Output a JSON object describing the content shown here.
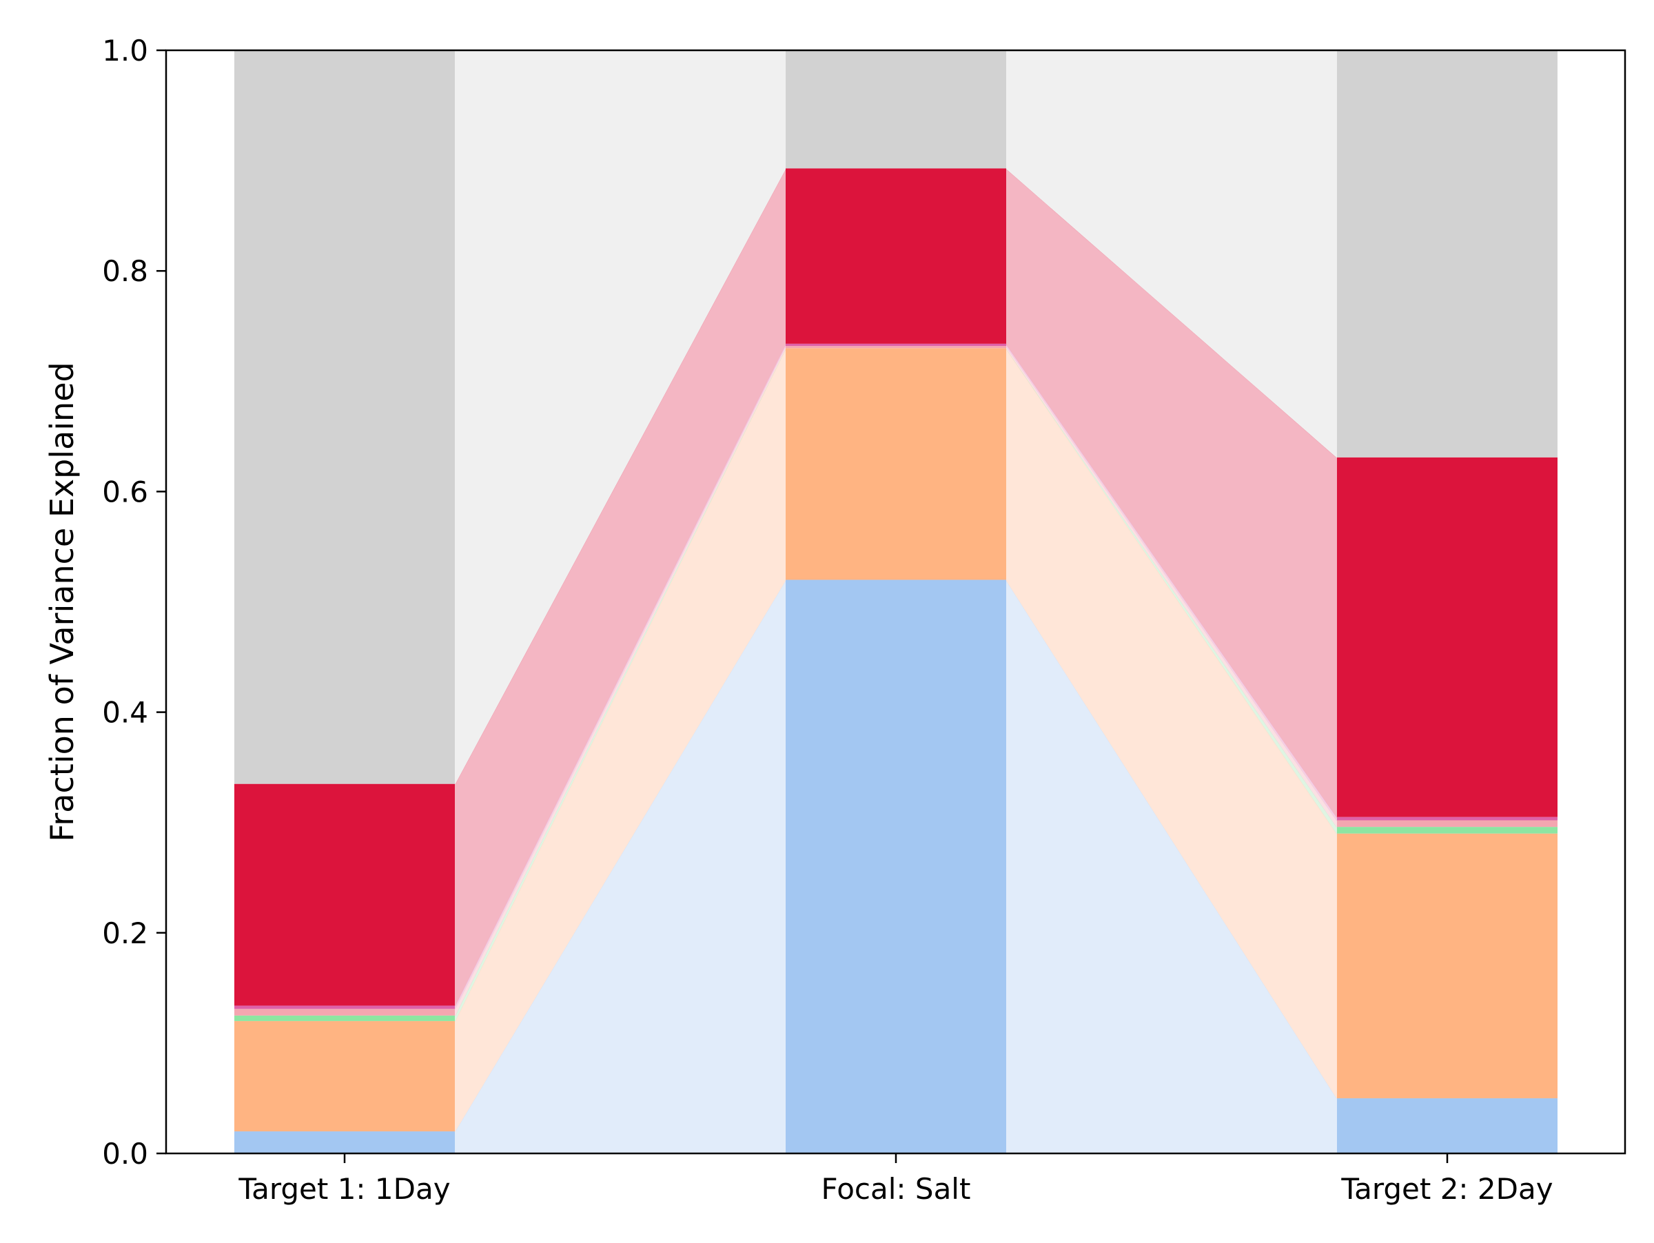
{
  "chart_data": {
    "type": "bar",
    "stacked": true,
    "categories": [
      "Target 1: 1Day",
      "Focal: Salt",
      "Target 2: 2Day"
    ],
    "ylabel": "Fraction of Variance Explained",
    "xlabel": "",
    "title": "",
    "ylim": [
      0,
      1.0
    ],
    "yticks": [
      "0.0",
      "0.2",
      "0.4",
      "0.6",
      "0.8",
      "1.0"
    ],
    "grid": false,
    "legend": "none",
    "connectors_between_bars": true,
    "series": [
      {
        "color": "#a3c7f2",
        "band_color": "#e1ecfa",
        "values": [
          0.02,
          0.52,
          0.05
        ]
      },
      {
        "color": "#ffb482",
        "band_color": "#ffe6d8",
        "values": [
          0.1,
          0.21,
          0.24
        ]
      },
      {
        "color": "#8de5a1",
        "band_color": "#dff5e3",
        "values": [
          0.005,
          0.0,
          0.006
        ]
      },
      {
        "color": "#f4a6b0",
        "band_color": "#fbe0e4",
        "values": [
          0.006,
          0.002,
          0.006
        ]
      },
      {
        "color": "#de61a8",
        "band_color": "#f5cfe4",
        "values": [
          0.003,
          0.002,
          0.003
        ]
      },
      {
        "color": "#dc143c",
        "band_color": "#f4b6c3",
        "values": [
          0.201,
          0.159,
          0.326
        ]
      },
      {
        "color": "#d2d2d2",
        "band_color": "#f0f0f0",
        "values": [
          0.665,
          0.107,
          0.369
        ]
      }
    ]
  }
}
